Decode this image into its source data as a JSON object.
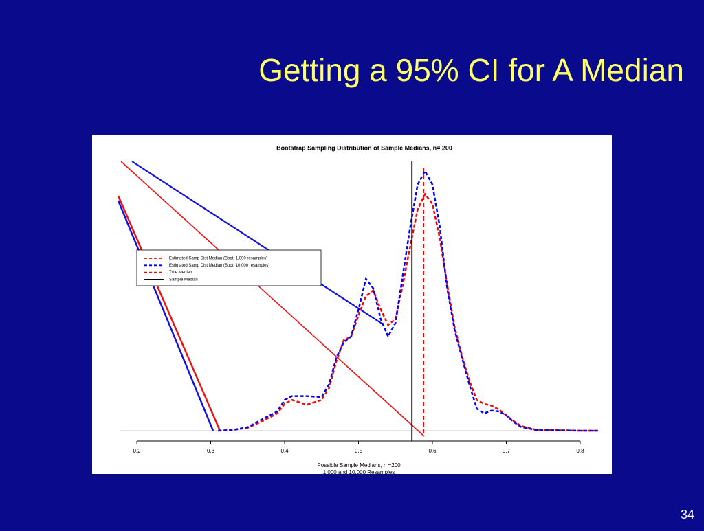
{
  "slide": {
    "title": "Getting a 95% CI for A Median",
    "page_number": "34"
  },
  "chart_data": {
    "type": "line",
    "title": "Bootstrap Sampling Distribution of Sample Medians, n= 200",
    "xlabel": [
      "Possible Sample Medians, n =200",
      "1,000 and 10,000 Resamples"
    ],
    "x": [
      0.31,
      0.33,
      0.35,
      0.37,
      0.39,
      0.4,
      0.41,
      0.43,
      0.45,
      0.46,
      0.47,
      0.48,
      0.49,
      0.5,
      0.51,
      0.52,
      0.53,
      0.54,
      0.55,
      0.56,
      0.57,
      0.58,
      0.59,
      0.6,
      0.61,
      0.62,
      0.63,
      0.64,
      0.65,
      0.66,
      0.67,
      0.68,
      0.69,
      0.7,
      0.71,
      0.72,
      0.74,
      0.8,
      0.824
    ],
    "series": [
      {
        "name": "Estimated Samp Dist Median (Boot, 1,000 resamples)",
        "color": "#ff0000",
        "dashed": true,
        "values": [
          0,
          0.04,
          0.15,
          0.5,
          0.9,
          1.4,
          1.6,
          1.35,
          1.6,
          2.2,
          3.6,
          4.7,
          4.9,
          6.0,
          7.0,
          7.3,
          6.3,
          5.5,
          5.8,
          7.6,
          9.6,
          11.5,
          12.3,
          11.8,
          10.0,
          7.6,
          5.4,
          3.9,
          2.6,
          1.6,
          1.4,
          1.3,
          1.1,
          0.8,
          0.5,
          0.25,
          0.05,
          0,
          0
        ]
      },
      {
        "name": "Estimated Samp Dist Median (Boot, 10,000 resamples)",
        "color": "#0000ff",
        "dashed": true,
        "values": [
          0,
          0.04,
          0.18,
          0.6,
          1.0,
          1.6,
          1.8,
          1.8,
          1.75,
          2.4,
          3.8,
          4.6,
          4.9,
          6.3,
          7.9,
          7.4,
          5.8,
          4.9,
          5.6,
          8.1,
          10.6,
          12.8,
          13.5,
          12.8,
          10.6,
          7.4,
          5.25,
          3.8,
          2.4,
          1.15,
          0.9,
          1.05,
          1.0,
          0.8,
          0.45,
          0.2,
          0.04,
          0,
          0
        ]
      }
    ],
    "vlines": [
      {
        "name": "True Median",
        "color": "#ff0000",
        "dashed": true,
        "value": 0.588
      },
      {
        "name": "Sample Median",
        "color": "#000000",
        "dashed": false,
        "value": 0.5723
      }
    ],
    "xlim": [
      0.1767,
      0.8242
    ],
    "xticks": [
      0.2,
      0.3,
      0.4,
      0.5,
      0.6,
      0.7,
      0.8
    ],
    "ylim": [
      0,
      14
    ]
  }
}
